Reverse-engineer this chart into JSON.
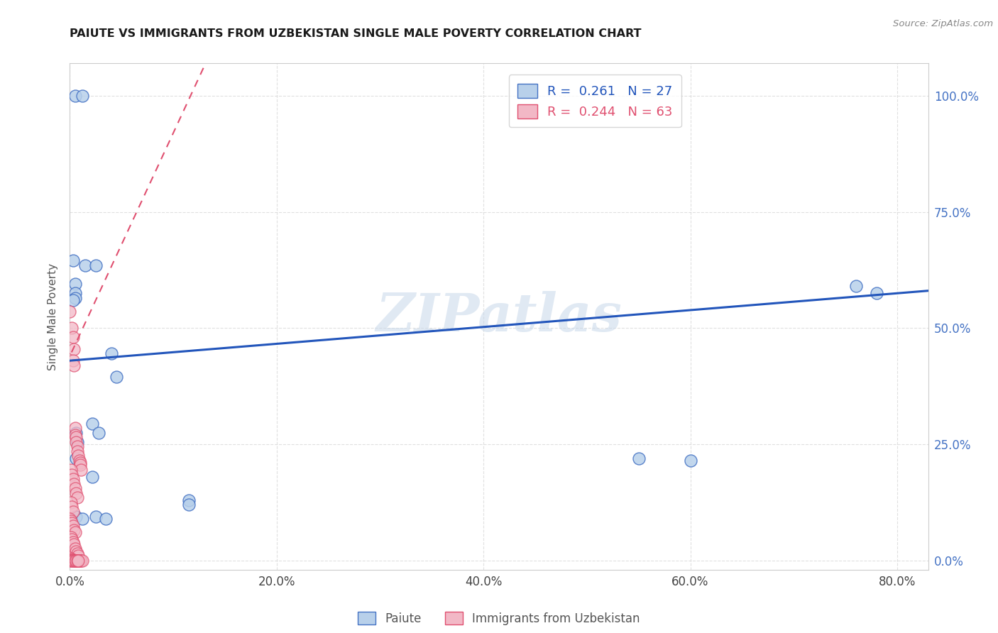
{
  "title": "PAIUTE VS IMMIGRANTS FROM UZBEKISTAN SINGLE MALE POVERTY CORRELATION CHART",
  "source": "Source: ZipAtlas.com",
  "ylabel_label": "Single Male Poverty",
  "watermark": "ZIPatlas",
  "paiute_scatter_color": "#b8d0ea",
  "paiute_edge_color": "#4472c4",
  "uzbekistan_scatter_color": "#f2b8c6",
  "uzbekistan_edge_color": "#e05070",
  "paiute_line_color": "#2255bb",
  "uzbekistan_line_color": "#e05070",
  "legend_label_paiute": "R =  0.261   N = 27",
  "legend_label_uzbek": "R =  0.244   N = 63",
  "bottom_label_paiute": "Paiute",
  "bottom_label_uzbek": "Immigrants from Uzbekistan",
  "paiute_points": [
    [
      0.005,
      1.0
    ],
    [
      0.012,
      1.0
    ],
    [
      0.003,
      0.645
    ],
    [
      0.015,
      0.635
    ],
    [
      0.025,
      0.635
    ],
    [
      0.005,
      0.595
    ],
    [
      0.005,
      0.575
    ],
    [
      0.005,
      0.565
    ],
    [
      0.003,
      0.56
    ],
    [
      0.04,
      0.445
    ],
    [
      0.045,
      0.395
    ],
    [
      0.022,
      0.295
    ],
    [
      0.028,
      0.275
    ],
    [
      0.006,
      0.275
    ],
    [
      0.007,
      0.255
    ],
    [
      0.006,
      0.22
    ],
    [
      0.022,
      0.18
    ],
    [
      0.55,
      0.22
    ],
    [
      0.6,
      0.215
    ],
    [
      0.006,
      0.095
    ],
    [
      0.012,
      0.09
    ],
    [
      0.025,
      0.095
    ],
    [
      0.035,
      0.09
    ],
    [
      0.115,
      0.13
    ],
    [
      0.115,
      0.12
    ],
    [
      0.76,
      0.59
    ],
    [
      0.78,
      0.575
    ]
  ],
  "uzbekistan_points": [
    [
      0.0,
      0.535
    ],
    [
      0.002,
      0.5
    ],
    [
      0.003,
      0.48
    ],
    [
      0.004,
      0.455
    ],
    [
      0.003,
      0.43
    ],
    [
      0.004,
      0.42
    ],
    [
      0.005,
      0.285
    ],
    [
      0.005,
      0.27
    ],
    [
      0.006,
      0.265
    ],
    [
      0.006,
      0.255
    ],
    [
      0.007,
      0.245
    ],
    [
      0.007,
      0.235
    ],
    [
      0.008,
      0.225
    ],
    [
      0.009,
      0.215
    ],
    [
      0.01,
      0.21
    ],
    [
      0.01,
      0.205
    ],
    [
      0.011,
      0.195
    ],
    [
      0.001,
      0.195
    ],
    [
      0.002,
      0.185
    ],
    [
      0.003,
      0.175
    ],
    [
      0.004,
      0.165
    ],
    [
      0.005,
      0.155
    ],
    [
      0.006,
      0.145
    ],
    [
      0.007,
      0.135
    ],
    [
      0.001,
      0.125
    ],
    [
      0.002,
      0.115
    ],
    [
      0.003,
      0.105
    ],
    [
      0.0,
      0.09
    ],
    [
      0.001,
      0.085
    ],
    [
      0.002,
      0.08
    ],
    [
      0.003,
      0.075
    ],
    [
      0.004,
      0.065
    ],
    [
      0.005,
      0.06
    ],
    [
      0.001,
      0.05
    ],
    [
      0.002,
      0.045
    ],
    [
      0.003,
      0.04
    ],
    [
      0.004,
      0.035
    ],
    [
      0.005,
      0.025
    ],
    [
      0.006,
      0.02
    ],
    [
      0.007,
      0.015
    ],
    [
      0.008,
      0.01
    ],
    [
      0.0,
      0.005
    ],
    [
      0.001,
      0.003
    ],
    [
      0.002,
      0.002
    ],
    [
      0.003,
      0.001
    ],
    [
      0.004,
      0.0
    ],
    [
      0.005,
      0.0
    ],
    [
      0.006,
      0.0
    ],
    [
      0.007,
      0.0
    ],
    [
      0.008,
      0.0
    ],
    [
      0.009,
      0.0
    ],
    [
      0.01,
      0.0
    ],
    [
      0.011,
      0.0
    ],
    [
      0.012,
      0.0
    ],
    [
      0.0,
      0.0
    ],
    [
      0.001,
      0.0
    ],
    [
      0.002,
      0.0
    ],
    [
      0.003,
      0.0
    ],
    [
      0.004,
      0.0
    ],
    [
      0.005,
      0.0
    ],
    [
      0.006,
      0.0
    ],
    [
      0.007,
      0.0
    ],
    [
      0.008,
      0.0
    ]
  ],
  "paiute_regression": [
    0.0,
    0.43,
    0.8,
    0.575
  ],
  "uzbekistan_regression": [
    0.0,
    0.44,
    0.025,
    0.56
  ],
  "xlim": [
    0.0,
    0.83
  ],
  "ylim": [
    -0.02,
    1.07
  ],
  "ytick_vals": [
    0.0,
    0.25,
    0.5,
    0.75,
    1.0
  ],
  "ytick_labels": [
    "0.0%",
    "25.0%",
    "50.0%",
    "75.0%",
    "100.0%"
  ],
  "xtick_vals": [
    0.0,
    0.2,
    0.4,
    0.6,
    0.8
  ],
  "xtick_labels": [
    "0.0%",
    "20.0%",
    "40.0%",
    "60.0%",
    "80.0%"
  ],
  "background_color": "#ffffff",
  "grid_color": "#cccccc"
}
